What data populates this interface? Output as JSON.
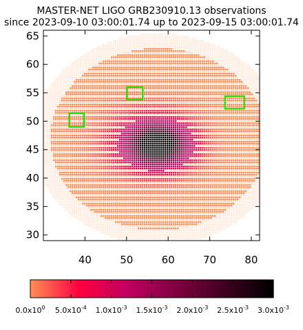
{
  "chart_data": {
    "type": "heatmap",
    "title": "MASTER-NET LIGO GRB230910.13 observations",
    "subtitle": "since 2023-09-10 03:00:01.74 up to 2023-09-15 03:00:01.74",
    "xlabel": "",
    "ylabel": "",
    "xlim": [
      30,
      82
    ],
    "ylim": [
      29,
      66
    ],
    "x_ticks": [
      40,
      50,
      60,
      70,
      80
    ],
    "y_ticks": [
      30,
      35,
      40,
      45,
      50,
      55,
      60,
      65
    ],
    "grid": false,
    "sky_region": {
      "ra_center": 57.5,
      "dec_center": 47,
      "ra_half_width": 26,
      "dec_half_height": 16,
      "peak_center": [
        57.5,
        46
      ],
      "peak_value": 0.003
    },
    "observed_fields": [
      {
        "ra": 38,
        "dec": 50.2,
        "width": 3.5,
        "height": 2.4
      },
      {
        "ra": 52,
        "dec": 54.9,
        "width": 3.8,
        "height": 2.2
      },
      {
        "ra": 76,
        "dec": 53.3,
        "width": 4.6,
        "height": 2.2
      }
    ],
    "colorbar": {
      "min": 0,
      "max": 0.003,
      "tick_labels": [
        "0.0x10^0",
        "5.0x10^-4",
        "1.0x10^-3",
        "1.5x10^-3",
        "2.0x10^-3",
        "2.5x10^-3",
        "3.0x10^-3"
      ],
      "colors": [
        "#ff8c55",
        "#ff0040",
        "#c00060",
        "#800040",
        "#400020",
        "#000000"
      ]
    },
    "field_color": "#22e000"
  }
}
